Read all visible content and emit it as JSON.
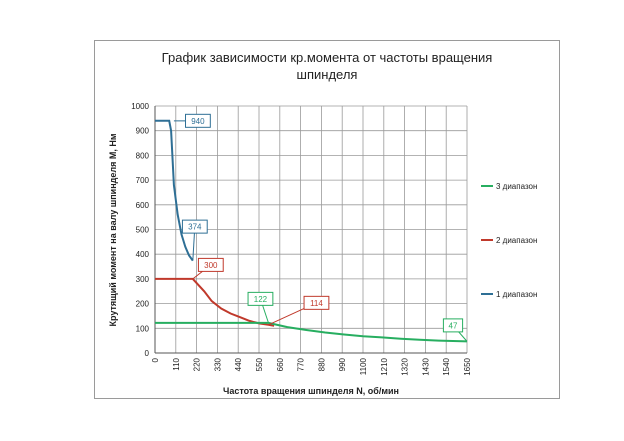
{
  "chart_data": {
    "type": "line",
    "title_lines": [
      "График зависимости кр.момента от частоты вращения",
      "шпинделя"
    ],
    "xlabel": "Частота вращения шпинделя N, об/мин",
    "ylabel": "Крутящий момент на валу шпинделя М, Нм",
    "x_ticks": [
      "0",
      "110",
      "220",
      "330",
      "440",
      "550",
      "660",
      "770",
      "880",
      "990",
      "1100",
      "1210",
      "1320",
      "1430",
      "1540",
      "1650"
    ],
    "y_ticks": [
      "0",
      "100",
      "200",
      "300",
      "400",
      "500",
      "600",
      "700",
      "800",
      "900",
      "1000"
    ],
    "xlim": [
      0,
      1650
    ],
    "ylim": [
      0,
      1000
    ],
    "grid": true,
    "legend_position": "right",
    "series": [
      {
        "name": "1 диапазон",
        "color": "#2e6f95",
        "x": [
          0,
          20,
          40,
          60,
          75,
          85,
          100,
          120,
          140,
          160,
          180,
          200
        ],
        "y": [
          940,
          940,
          940,
          940,
          940,
          900,
          680,
          560,
          480,
          430,
          395,
          374
        ]
      },
      {
        "name": "2 диапазон",
        "color": "#c0392b",
        "x": [
          0,
          100,
          200,
          260,
          300,
          350,
          400,
          450,
          500,
          550,
          600,
          630
        ],
        "y": [
          300,
          300,
          300,
          250,
          210,
          180,
          160,
          145,
          130,
          120,
          114,
          110
        ]
      },
      {
        "name": "3 диапазон",
        "color": "#27ae60",
        "x": [
          0,
          200,
          400,
          600,
          700,
          800,
          900,
          1000,
          1100,
          1200,
          1300,
          1400,
          1500,
          1600,
          1650
        ],
        "y": [
          122,
          122,
          122,
          122,
          105,
          93,
          83,
          75,
          68,
          63,
          58,
          54,
          50,
          48,
          47
        ]
      }
    ],
    "annotations": [
      {
        "text": "940",
        "x": 100,
        "y": 940,
        "color": "#2e6f95"
      },
      {
        "text": "374",
        "x": 200,
        "y": 374,
        "color": "#2e6f95"
      },
      {
        "text": "300",
        "x": 200,
        "y": 300,
        "color": "#c0392b"
      },
      {
        "text": "114",
        "x": 600,
        "y": 114,
        "color": "#c0392b"
      },
      {
        "text": "122",
        "x": 600,
        "y": 122,
        "color": "#27ae60"
      },
      {
        "text": "47",
        "x": 1650,
        "y": 47,
        "color": "#27ae60"
      }
    ]
  }
}
